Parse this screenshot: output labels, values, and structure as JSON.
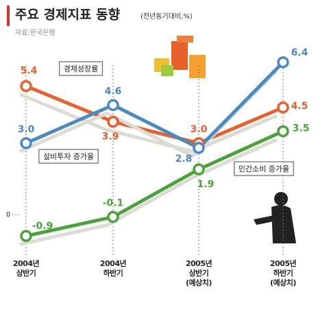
{
  "chart_data": {
    "type": "line",
    "title": "주요 경제지표 동향",
    "subtitle": "(전년동기대비,%)",
    "source": "자료:한국은행",
    "categories": [
      "2004년\n상반기",
      "2004년\n하반기",
      "2005년\n상반기\n(예상치)",
      "2005년\n하반기\n(예상치)"
    ],
    "series": [
      {
        "name": "경제성장률",
        "color": "#e8602c",
        "values": [
          5.4,
          3.9,
          3.0,
          4.5
        ],
        "value_labels": [
          "5.4",
          "3.9",
          "3.0",
          "4.5"
        ]
      },
      {
        "name": "설비투자 증가율",
        "color": "#4a8ac4",
        "values": [
          3.0,
          4.6,
          2.8,
          6.4
        ],
        "value_labels": [
          "3.0",
          "4.6",
          "2.8",
          "6.4"
        ]
      },
      {
        "name": "민간소비 증가율",
        "color": "#4aa23a",
        "values": [
          -0.9,
          -0.1,
          1.9,
          3.5
        ],
        "value_labels": [
          "-0.9",
          "-0.1",
          "1.9",
          "3.5"
        ]
      }
    ],
    "ylim": [
      -1.5,
      7
    ],
    "yticks": [
      0
    ],
    "grid": false
  }
}
